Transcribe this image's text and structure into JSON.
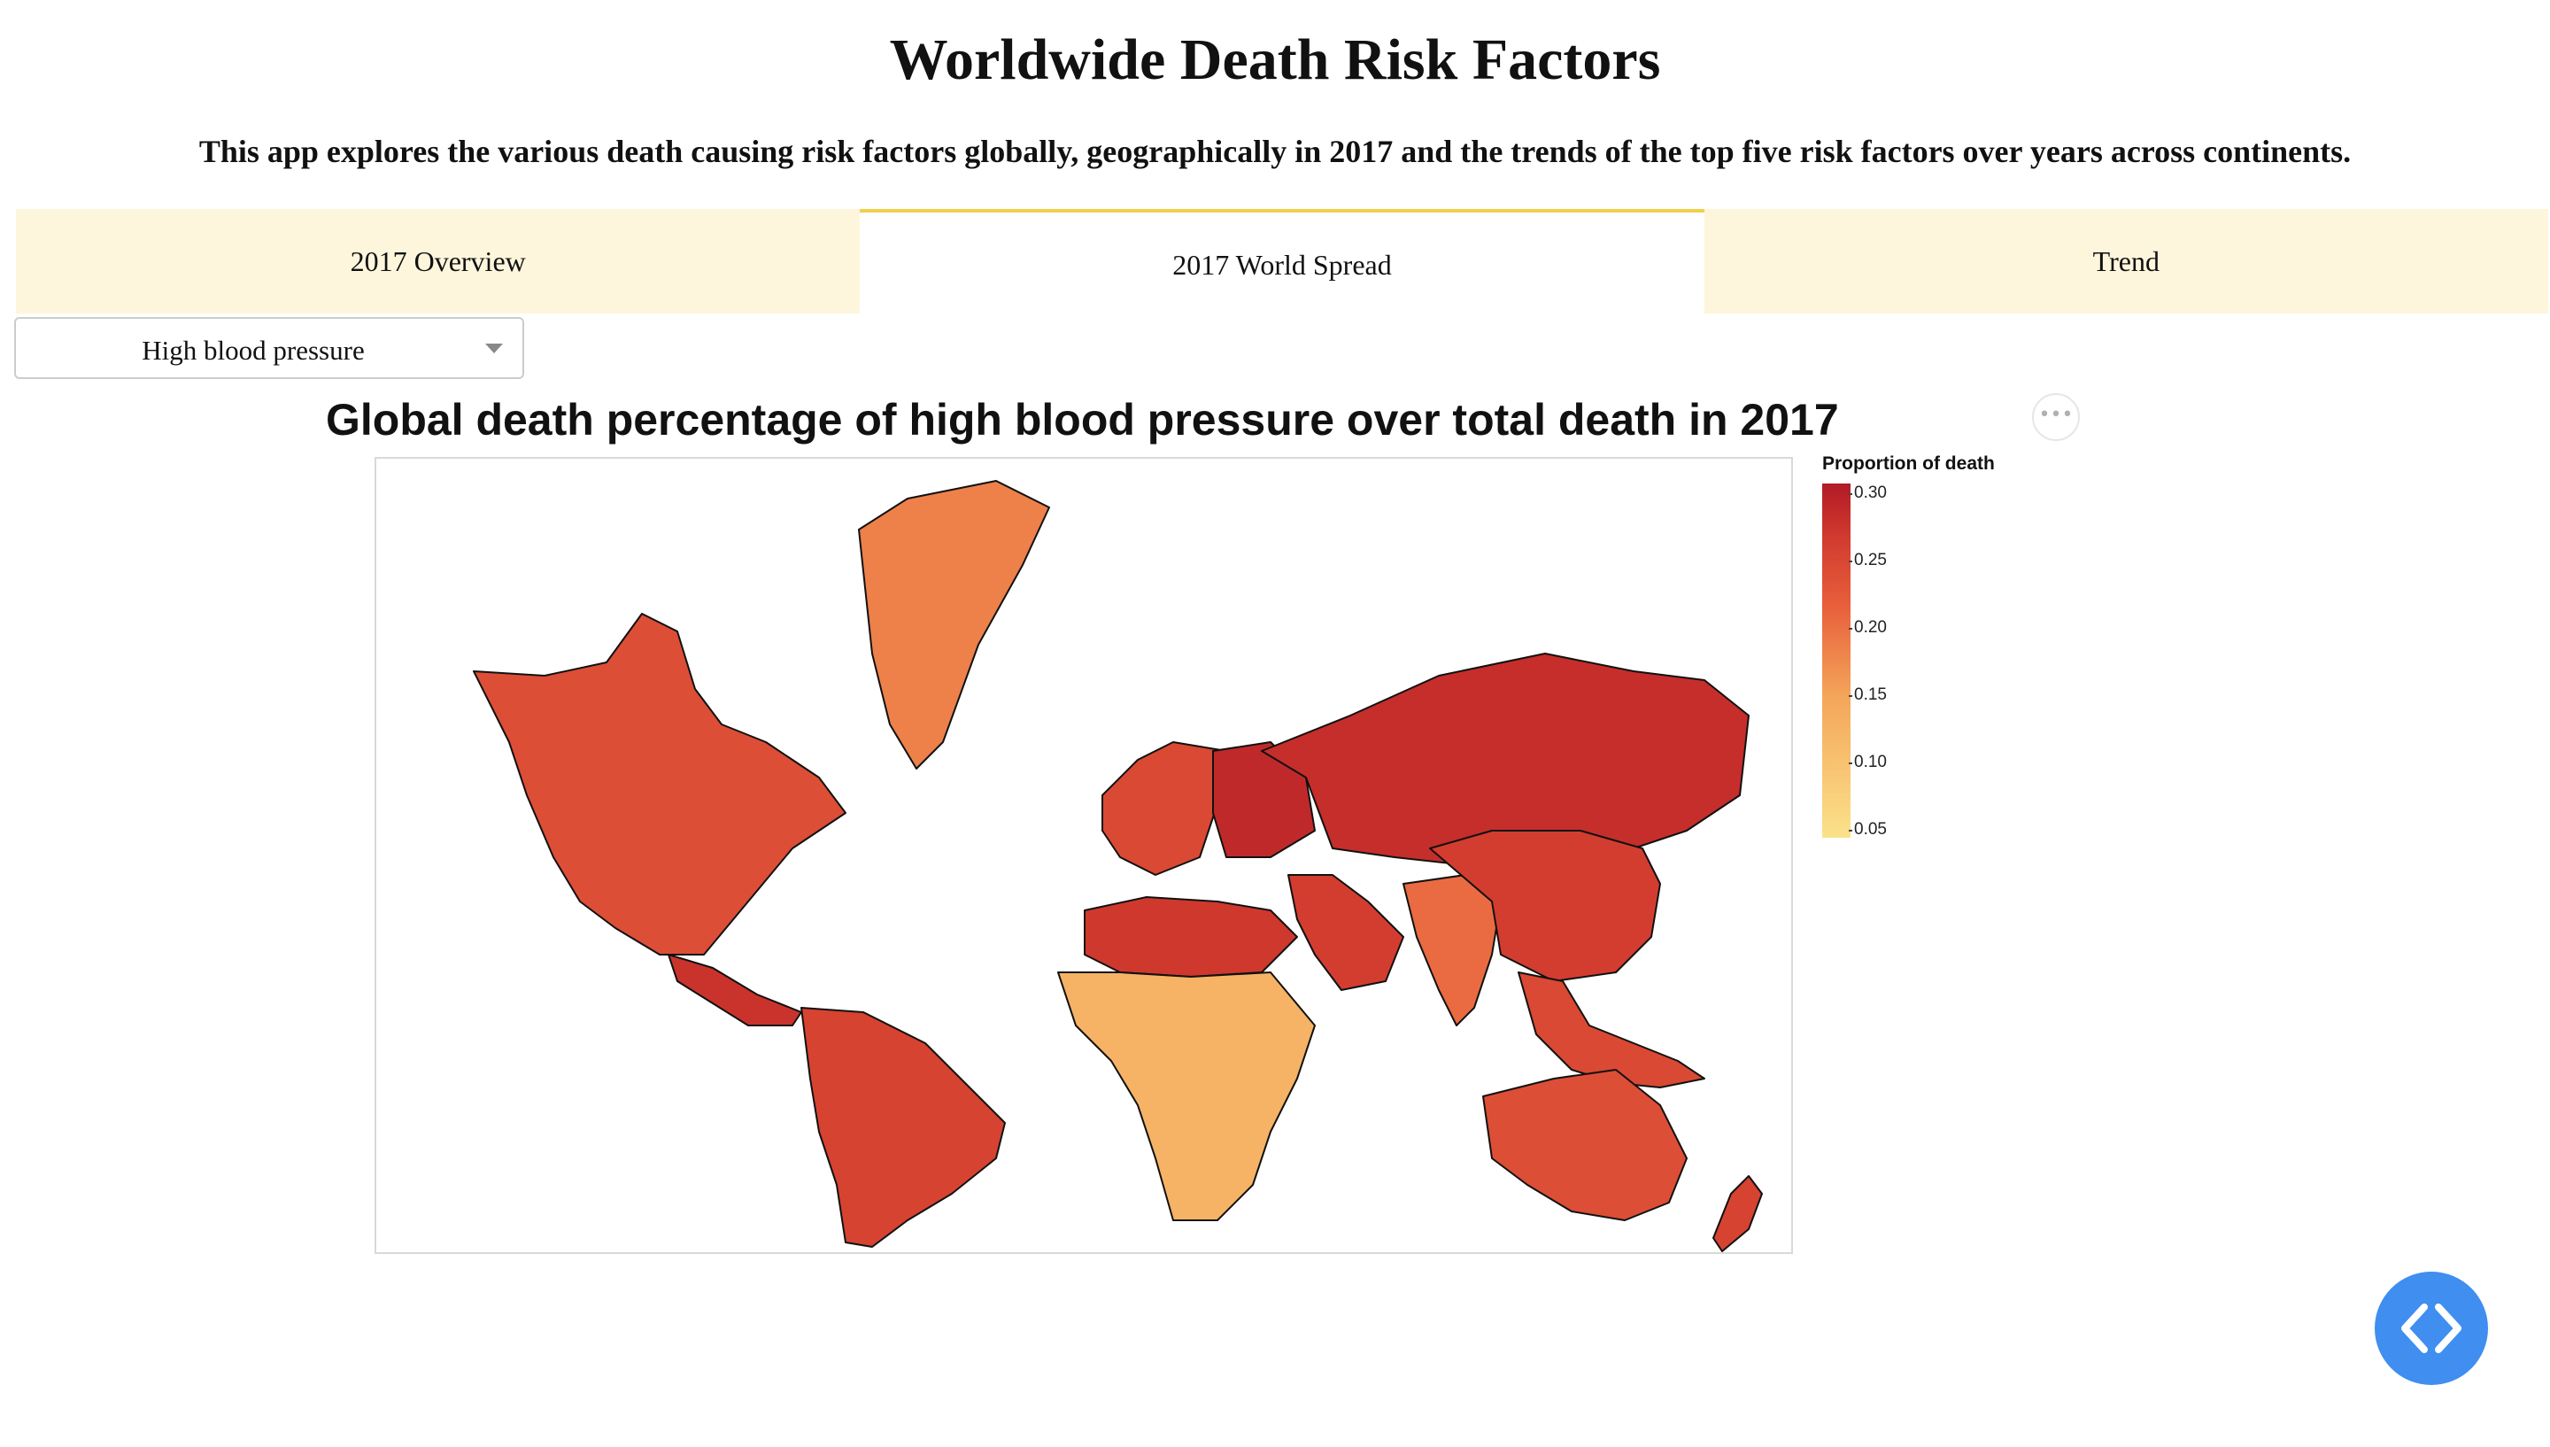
{
  "header": {
    "title": "Worldwide Death Risk Factors",
    "description": "This app explores the various death causing risk factors globally, geographically in 2017 and the trends of the top five risk factors over years across continents."
  },
  "tabs": [
    {
      "label": "2017 Overview",
      "active": false
    },
    {
      "label": "2017 World Spread",
      "active": true
    },
    {
      "label": "Trend",
      "active": false
    }
  ],
  "dropdown": {
    "selected": "High blood pressure"
  },
  "chart": {
    "title": "Global death percentage of high blood pressure over total death in 2017",
    "more_icon": "ellipsis-icon",
    "colorbar": {
      "title": "Proportion of death",
      "ticks": [
        "0.30",
        "0.25",
        "0.20",
        "0.15",
        "0.10",
        "0.05"
      ],
      "range": [
        0.05,
        0.31
      ],
      "colorscale": [
        "#fbe28a",
        "#f4a55a",
        "#e8603c",
        "#d13a2e",
        "#b21a26"
      ]
    }
  },
  "chart_data": {
    "type": "choropleth",
    "title": "Global death percentage of high blood pressure over total death in 2017",
    "colorbar_title": "Proportion of death",
    "regions": [
      {
        "name": "Russia",
        "value": 0.27
      },
      {
        "name": "Eastern Europe",
        "value": 0.28
      },
      {
        "name": "Western Europe",
        "value": 0.22
      },
      {
        "name": "North America",
        "value": 0.21
      },
      {
        "name": "Greenland",
        "value": 0.15
      },
      {
        "name": "Central America",
        "value": 0.26
      },
      {
        "name": "South America",
        "value": 0.23
      },
      {
        "name": "North Africa",
        "value": 0.25
      },
      {
        "name": "Sub-Saharan Africa",
        "value": 0.1
      },
      {
        "name": "Middle East",
        "value": 0.24
      },
      {
        "name": "South Asia",
        "value": 0.17
      },
      {
        "name": "China",
        "value": 0.24
      },
      {
        "name": "Southeast Asia",
        "value": 0.22
      },
      {
        "name": "Australia",
        "value": 0.21
      },
      {
        "name": "New Zealand",
        "value": 0.23
      }
    ]
  },
  "fab": {
    "icon": "code-icon"
  }
}
